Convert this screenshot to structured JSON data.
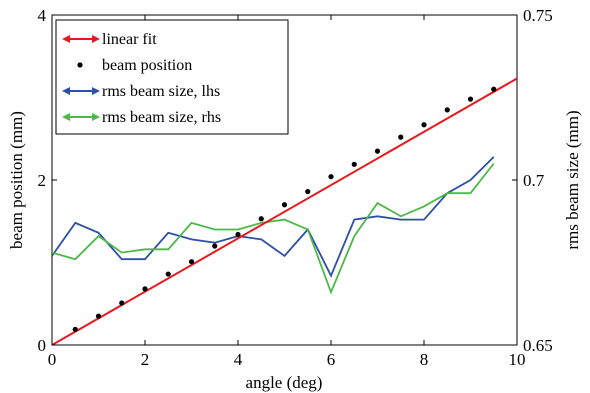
{
  "chart_data": {
    "type": "line",
    "xlabel": "angle (deg)",
    "ylabel_left": "beam position (mm)",
    "ylabel_right": "rms beam size (mm)",
    "xlim": [
      0,
      10
    ],
    "ylim_left": [
      0,
      4
    ],
    "ylim_right": [
      0.65,
      0.75
    ],
    "x_ticks": [
      "0",
      "2",
      "4",
      "6",
      "8",
      "10"
    ],
    "y_left_ticks": [
      "0",
      "2",
      "4"
    ],
    "y_right_ticks": [
      "0.65",
      "0.7",
      "0.75"
    ],
    "legend_position": "top-left",
    "grid": false,
    "colors": {
      "linear_fit": "#e8191e",
      "beam_position": "#000000",
      "rms_lhs": "#2e4fa6",
      "rms_rhs": "#4cb848"
    },
    "series": [
      {
        "name": "linear fit",
        "axis": "left",
        "style": "line",
        "x": [
          0,
          10
        ],
        "y": [
          0,
          3.23
        ]
      },
      {
        "name": "beam position",
        "axis": "left",
        "style": "dots",
        "x": [
          0.5,
          1.0,
          1.5,
          2.0,
          2.5,
          3.0,
          3.5,
          4.0,
          4.5,
          5.0,
          5.5,
          6.0,
          6.5,
          7.0,
          7.5,
          8.0,
          8.5,
          9.0,
          9.5
        ],
        "y": [
          0.19,
          0.35,
          0.51,
          0.68,
          0.86,
          1.01,
          1.2,
          1.34,
          1.53,
          1.7,
          1.86,
          2.04,
          2.19,
          2.35,
          2.52,
          2.67,
          2.85,
          2.98,
          3.1
        ]
      },
      {
        "name": "rms beam size, lhs",
        "axis": "right",
        "style": "line",
        "x": [
          0,
          0.5,
          1.0,
          1.5,
          2.0,
          2.5,
          3.0,
          3.5,
          4.0,
          4.5,
          5.0,
          5.5,
          6.0,
          6.5,
          7.0,
          7.5,
          8.0,
          8.5,
          9.0,
          9.5
        ],
        "y": [
          0.677,
          0.687,
          0.684,
          0.676,
          0.676,
          0.684,
          0.682,
          0.681,
          0.683,
          0.682,
          0.677,
          0.685,
          0.671,
          0.688,
          0.689,
          0.688,
          0.688,
          0.696,
          0.7,
          0.707
        ]
      },
      {
        "name": "rms beam size, rhs",
        "axis": "right",
        "style": "line",
        "x": [
          0,
          0.5,
          1.0,
          1.5,
          2.0,
          2.5,
          3.0,
          3.5,
          4.0,
          4.5,
          5.0,
          5.5,
          6.0,
          6.5,
          7.0,
          7.5,
          8.0,
          8.5,
          9.0,
          9.5
        ],
        "y": [
          0.678,
          0.676,
          0.683,
          0.678,
          0.679,
          0.679,
          0.687,
          0.685,
          0.685,
          0.687,
          0.688,
          0.685,
          0.666,
          0.683,
          0.693,
          0.689,
          0.692,
          0.696,
          0.696,
          0.705
        ]
      }
    ]
  }
}
